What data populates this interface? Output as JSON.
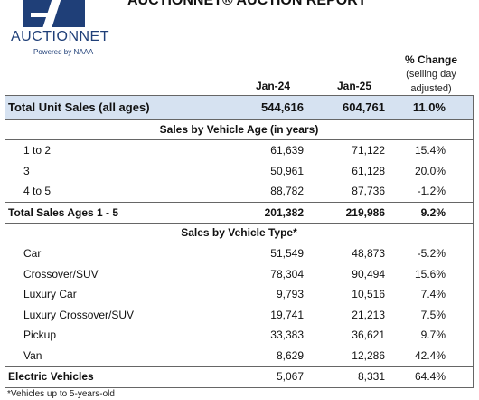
{
  "logo": {
    "name": "AUCTIONNET",
    "tagline": "Powered by NAAA"
  },
  "report_title": "AUCTIONNET® AUCTION REPORT",
  "columns": {
    "jan24": "Jan-24",
    "jan25": "Jan-25",
    "pct_title": "% Change",
    "pct_sub1": "(selling day",
    "pct_sub2": "adjusted)"
  },
  "total": {
    "label": "Total Unit Sales (all ages)",
    "jan24": "544,616",
    "jan25": "604,761",
    "pct": "11.0%"
  },
  "age_section": {
    "title": "Sales by Vehicle Age (in years)",
    "rows": [
      {
        "label": "1 to 2",
        "jan24": "61,639",
        "jan25": "71,122",
        "pct": "15.4%"
      },
      {
        "label": "3",
        "jan24": "50,961",
        "jan25": "61,128",
        "pct": "20.0%"
      },
      {
        "label": "4 to 5",
        "jan24": "88,782",
        "jan25": "87,736",
        "pct": "-1.2%"
      }
    ],
    "total": {
      "label": "Total Sales Ages 1 - 5",
      "jan24": "201,382",
      "jan25": "219,986",
      "pct": "9.2%"
    }
  },
  "type_section": {
    "title": "Sales by Vehicle Type*",
    "rows": [
      {
        "label": "Car",
        "jan24": "51,549",
        "jan25": "48,873",
        "pct": "-5.2%"
      },
      {
        "label": "Crossover/SUV",
        "jan24": "78,304",
        "jan25": "90,494",
        "pct": "15.6%"
      },
      {
        "label": "Luxury Car",
        "jan24": "9,793",
        "jan25": "10,516",
        "pct": "7.4%"
      },
      {
        "label": "Luxury Crossover/SUV",
        "jan24": "19,741",
        "jan25": "21,213",
        "pct": "7.5%"
      },
      {
        "label": "Pickup",
        "jan24": "33,383",
        "jan25": "36,621",
        "pct": "9.7%"
      },
      {
        "label": "Van",
        "jan24": "8,629",
        "jan25": "12,286",
        "pct": "42.4%"
      }
    ]
  },
  "ev": {
    "label": "Electric Vehicles",
    "jan24": "5,067",
    "jan25": "8,331",
    "pct": "64.4%"
  },
  "footnote": "*Vehicles up to 5-years-old",
  "colors": {
    "brand": "#1f3f78",
    "total_row_bg": "#d6e2f1"
  }
}
